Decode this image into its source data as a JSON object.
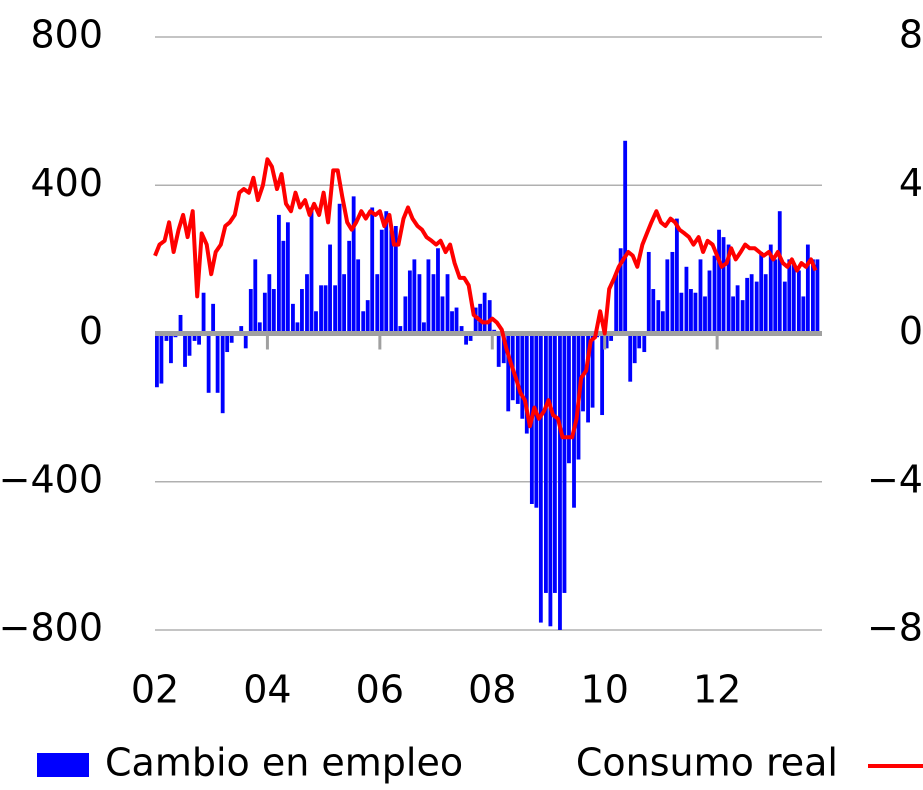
{
  "chart_data": {
    "type": "bar-line",
    "xlim": [
      2002,
      2013.83
    ],
    "xticks": [
      {
        "value": 2002,
        "label": "02"
      },
      {
        "value": 2004,
        "label": "04"
      },
      {
        "value": 2006,
        "label": "06"
      },
      {
        "value": 2008,
        "label": "08"
      },
      {
        "value": 2010,
        "label": "10"
      },
      {
        "value": 2012,
        "label": "12"
      }
    ],
    "ylim": [
      -800,
      800
    ],
    "yticks": [
      {
        "value": -800,
        "label": "−800"
      },
      {
        "value": -400,
        "label": "−400"
      },
      0,
      400,
      800
    ],
    "y2lim": [
      -8,
      8
    ],
    "y2ticks": [
      {
        "value": -8,
        "label": "−8"
      },
      {
        "value": -4,
        "label": "−4"
      },
      0,
      4,
      8
    ],
    "grid": true,
    "x": [
      2002.0,
      2002.08,
      2002.17,
      2002.25,
      2002.33,
      2002.42,
      2002.5,
      2002.58,
      2002.67,
      2002.75,
      2002.83,
      2002.92,
      2003.0,
      2003.08,
      2003.17,
      2003.25,
      2003.33,
      2003.42,
      2003.5,
      2003.58,
      2003.67,
      2003.75,
      2003.83,
      2003.92,
      2004.0,
      2004.08,
      2004.17,
      2004.25,
      2004.33,
      2004.42,
      2004.5,
      2004.58,
      2004.67,
      2004.75,
      2004.83,
      2004.92,
      2005.0,
      2005.08,
      2005.17,
      2005.25,
      2005.33,
      2005.42,
      2005.5,
      2005.58,
      2005.67,
      2005.75,
      2005.83,
      2005.92,
      2006.0,
      2006.08,
      2006.17,
      2006.25,
      2006.33,
      2006.42,
      2006.5,
      2006.58,
      2006.67,
      2006.75,
      2006.83,
      2006.92,
      2007.0,
      2007.08,
      2007.17,
      2007.25,
      2007.33,
      2007.42,
      2007.5,
      2007.58,
      2007.67,
      2007.75,
      2007.83,
      2007.92,
      2008.0,
      2008.08,
      2008.17,
      2008.25,
      2008.33,
      2008.42,
      2008.5,
      2008.58,
      2008.67,
      2008.75,
      2008.83,
      2008.92,
      2009.0,
      2009.08,
      2009.17,
      2009.25,
      2009.33,
      2009.42,
      2009.5,
      2009.58,
      2009.67,
      2009.75,
      2009.83,
      2009.92,
      2010.0,
      2010.08,
      2010.17,
      2010.25,
      2010.33,
      2010.42,
      2010.5,
      2010.58,
      2010.67,
      2010.75,
      2010.83,
      2010.92,
      2011.0,
      2011.08,
      2011.17,
      2011.25,
      2011.33,
      2011.42,
      2011.5,
      2011.58,
      2011.67,
      2011.75,
      2011.83,
      2011.92,
      2012.0,
      2012.08,
      2012.17,
      2012.25,
      2012.33,
      2012.42,
      2012.5,
      2012.58,
      2012.67,
      2012.75,
      2012.83,
      2012.92,
      2013.0,
      2013.08,
      2013.17,
      2013.25,
      2013.33,
      2013.42,
      2013.5,
      2013.58,
      2013.67,
      2013.75
    ],
    "series": [
      {
        "name": "Cambio en empleo",
        "color": "#0000ff",
        "kind": "bar",
        "values": [
          -145,
          -135,
          -20,
          -80,
          -10,
          50,
          -90,
          -60,
          -20,
          -30,
          110,
          -160,
          80,
          -160,
          -215,
          -50,
          -25,
          -5,
          20,
          -40,
          120,
          200,
          30,
          110,
          160,
          120,
          320,
          250,
          300,
          80,
          30,
          120,
          160,
          340,
          60,
          130,
          130,
          240,
          130,
          350,
          160,
          250,
          370,
          200,
          60,
          90,
          340,
          160,
          280,
          330,
          280,
          290,
          20,
          100,
          170,
          200,
          160,
          30,
          200,
          160,
          230,
          100,
          160,
          60,
          70,
          20,
          -30,
          -20,
          70,
          80,
          110,
          90,
          10,
          -90,
          -80,
          -210,
          -180,
          -190,
          -230,
          -270,
          -460,
          -470,
          -780,
          -700,
          -790,
          -700,
          -800,
          -700,
          -350,
          -470,
          -340,
          -210,
          -240,
          -200,
          -10,
          -220,
          -40,
          -20,
          160,
          230,
          520,
          -130,
          -80,
          -40,
          -50,
          220,
          120,
          90,
          60,
          200,
          220,
          310,
          110,
          180,
          120,
          110,
          200,
          100,
          170,
          210,
          280,
          260,
          240,
          100,
          130,
          90,
          150,
          160,
          140,
          220,
          160,
          240,
          200,
          330,
          140,
          200,
          190,
          170,
          100,
          240,
          200,
          200
        ]
      },
      {
        "name": "Consumo real",
        "color": "#ff0000",
        "kind": "line",
        "axis": "y2",
        "values": [
          2.1,
          2.4,
          2.5,
          3.0,
          2.2,
          2.8,
          3.2,
          2.6,
          3.3,
          1.0,
          2.7,
          2.4,
          1.6,
          2.2,
          2.4,
          2.9,
          3.0,
          3.2,
          3.8,
          3.9,
          3.8,
          4.2,
          3.6,
          4.0,
          4.7,
          4.5,
          3.9,
          4.3,
          3.5,
          3.3,
          3.8,
          3.4,
          3.6,
          3.2,
          3.5,
          3.2,
          3.8,
          3.0,
          4.4,
          4.4,
          3.7,
          3.0,
          2.8,
          3.0,
          3.3,
          3.1,
          3.3,
          3.2,
          3.3,
          2.9,
          3.2,
          2.4,
          2.4,
          3.1,
          3.4,
          3.1,
          2.9,
          2.8,
          2.6,
          2.5,
          2.4,
          2.5,
          2.2,
          2.4,
          1.9,
          1.5,
          1.5,
          1.3,
          0.5,
          0.4,
          0.3,
          0.3,
          0.4,
          0.3,
          0.1,
          -0.4,
          -0.8,
          -1.2,
          -1.6,
          -1.8,
          -2.5,
          -2.0,
          -2.3,
          -2.1,
          -1.8,
          -2.2,
          -2.3,
          -2.8,
          -2.8,
          -2.8,
          -2.3,
          -1.2,
          -1.0,
          -0.2,
          -0.1,
          0.6,
          0,
          1.2,
          1.5,
          1.8,
          2.0,
          2.2,
          2.1,
          1.8,
          2.4,
          2.7,
          3.0,
          3.3,
          3.0,
          2.9,
          3.1,
          3.0,
          2.8,
          2.7,
          2.6,
          2.4,
          2.6,
          2.2,
          2.5,
          2.4,
          2.1,
          1.8,
          1.9,
          2.3,
          2.0,
          2.2,
          2.4,
          2.3,
          2.3,
          2.2,
          2.1,
          2.2,
          2.0,
          2.2,
          1.9,
          1.8,
          2.0,
          1.7,
          1.9,
          1.8,
          2.0,
          1.7
        ]
      }
    ]
  }
}
